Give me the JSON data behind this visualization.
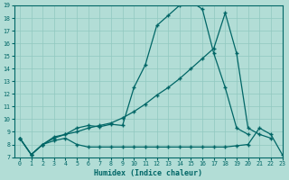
{
  "xlabel": "Humidex (Indice chaleur)",
  "bg_color": "#b2ddd6",
  "line_color": "#006666",
  "grid_color": "#90c8c0",
  "xlim": [
    -0.5,
    23
  ],
  "ylim": [
    7,
    19
  ],
  "xticks": [
    0,
    1,
    2,
    3,
    4,
    5,
    6,
    7,
    8,
    9,
    10,
    11,
    12,
    13,
    14,
    15,
    16,
    17,
    18,
    19,
    20,
    21,
    22,
    23
  ],
  "yticks": [
    7,
    8,
    9,
    10,
    11,
    12,
    13,
    14,
    15,
    16,
    17,
    18,
    19
  ],
  "line1_x": [
    0,
    1,
    2,
    3,
    4,
    5,
    6,
    7,
    8,
    9,
    10,
    11,
    12,
    13,
    14,
    15,
    16,
    17,
    18,
    19,
    20
  ],
  "line1_y": [
    8.5,
    7.2,
    8.0,
    8.6,
    8.8,
    9.3,
    9.5,
    9.4,
    9.6,
    9.5,
    12.5,
    14.3,
    17.4,
    18.2,
    19.0,
    19.3,
    18.7,
    15.2,
    12.5,
    9.3,
    8.8
  ],
  "line2_x": [
    0,
    1,
    2,
    3,
    4,
    5,
    6,
    7,
    8,
    9,
    10,
    11,
    12,
    13,
    14,
    15,
    16,
    17,
    18,
    19,
    20,
    21,
    22
  ],
  "line2_y": [
    8.5,
    7.2,
    8.0,
    8.5,
    8.8,
    9.0,
    9.3,
    9.5,
    9.7,
    10.1,
    10.6,
    11.2,
    11.9,
    12.5,
    13.2,
    14.0,
    14.8,
    15.6,
    18.4,
    15.2,
    9.3,
    8.8,
    8.5
  ],
  "line3_x": [
    0,
    1,
    2,
    3,
    4,
    5,
    6,
    7,
    8,
    9,
    10,
    11,
    12,
    13,
    14,
    15,
    16,
    17,
    18,
    19,
    20,
    21,
    22,
    23
  ],
  "line3_y": [
    8.5,
    7.2,
    8.0,
    8.3,
    8.5,
    8.0,
    7.8,
    7.8,
    7.8,
    7.8,
    7.8,
    7.8,
    7.8,
    7.8,
    7.8,
    7.8,
    7.8,
    7.8,
    7.8,
    7.9,
    8.0,
    9.3,
    8.8,
    7.2
  ]
}
